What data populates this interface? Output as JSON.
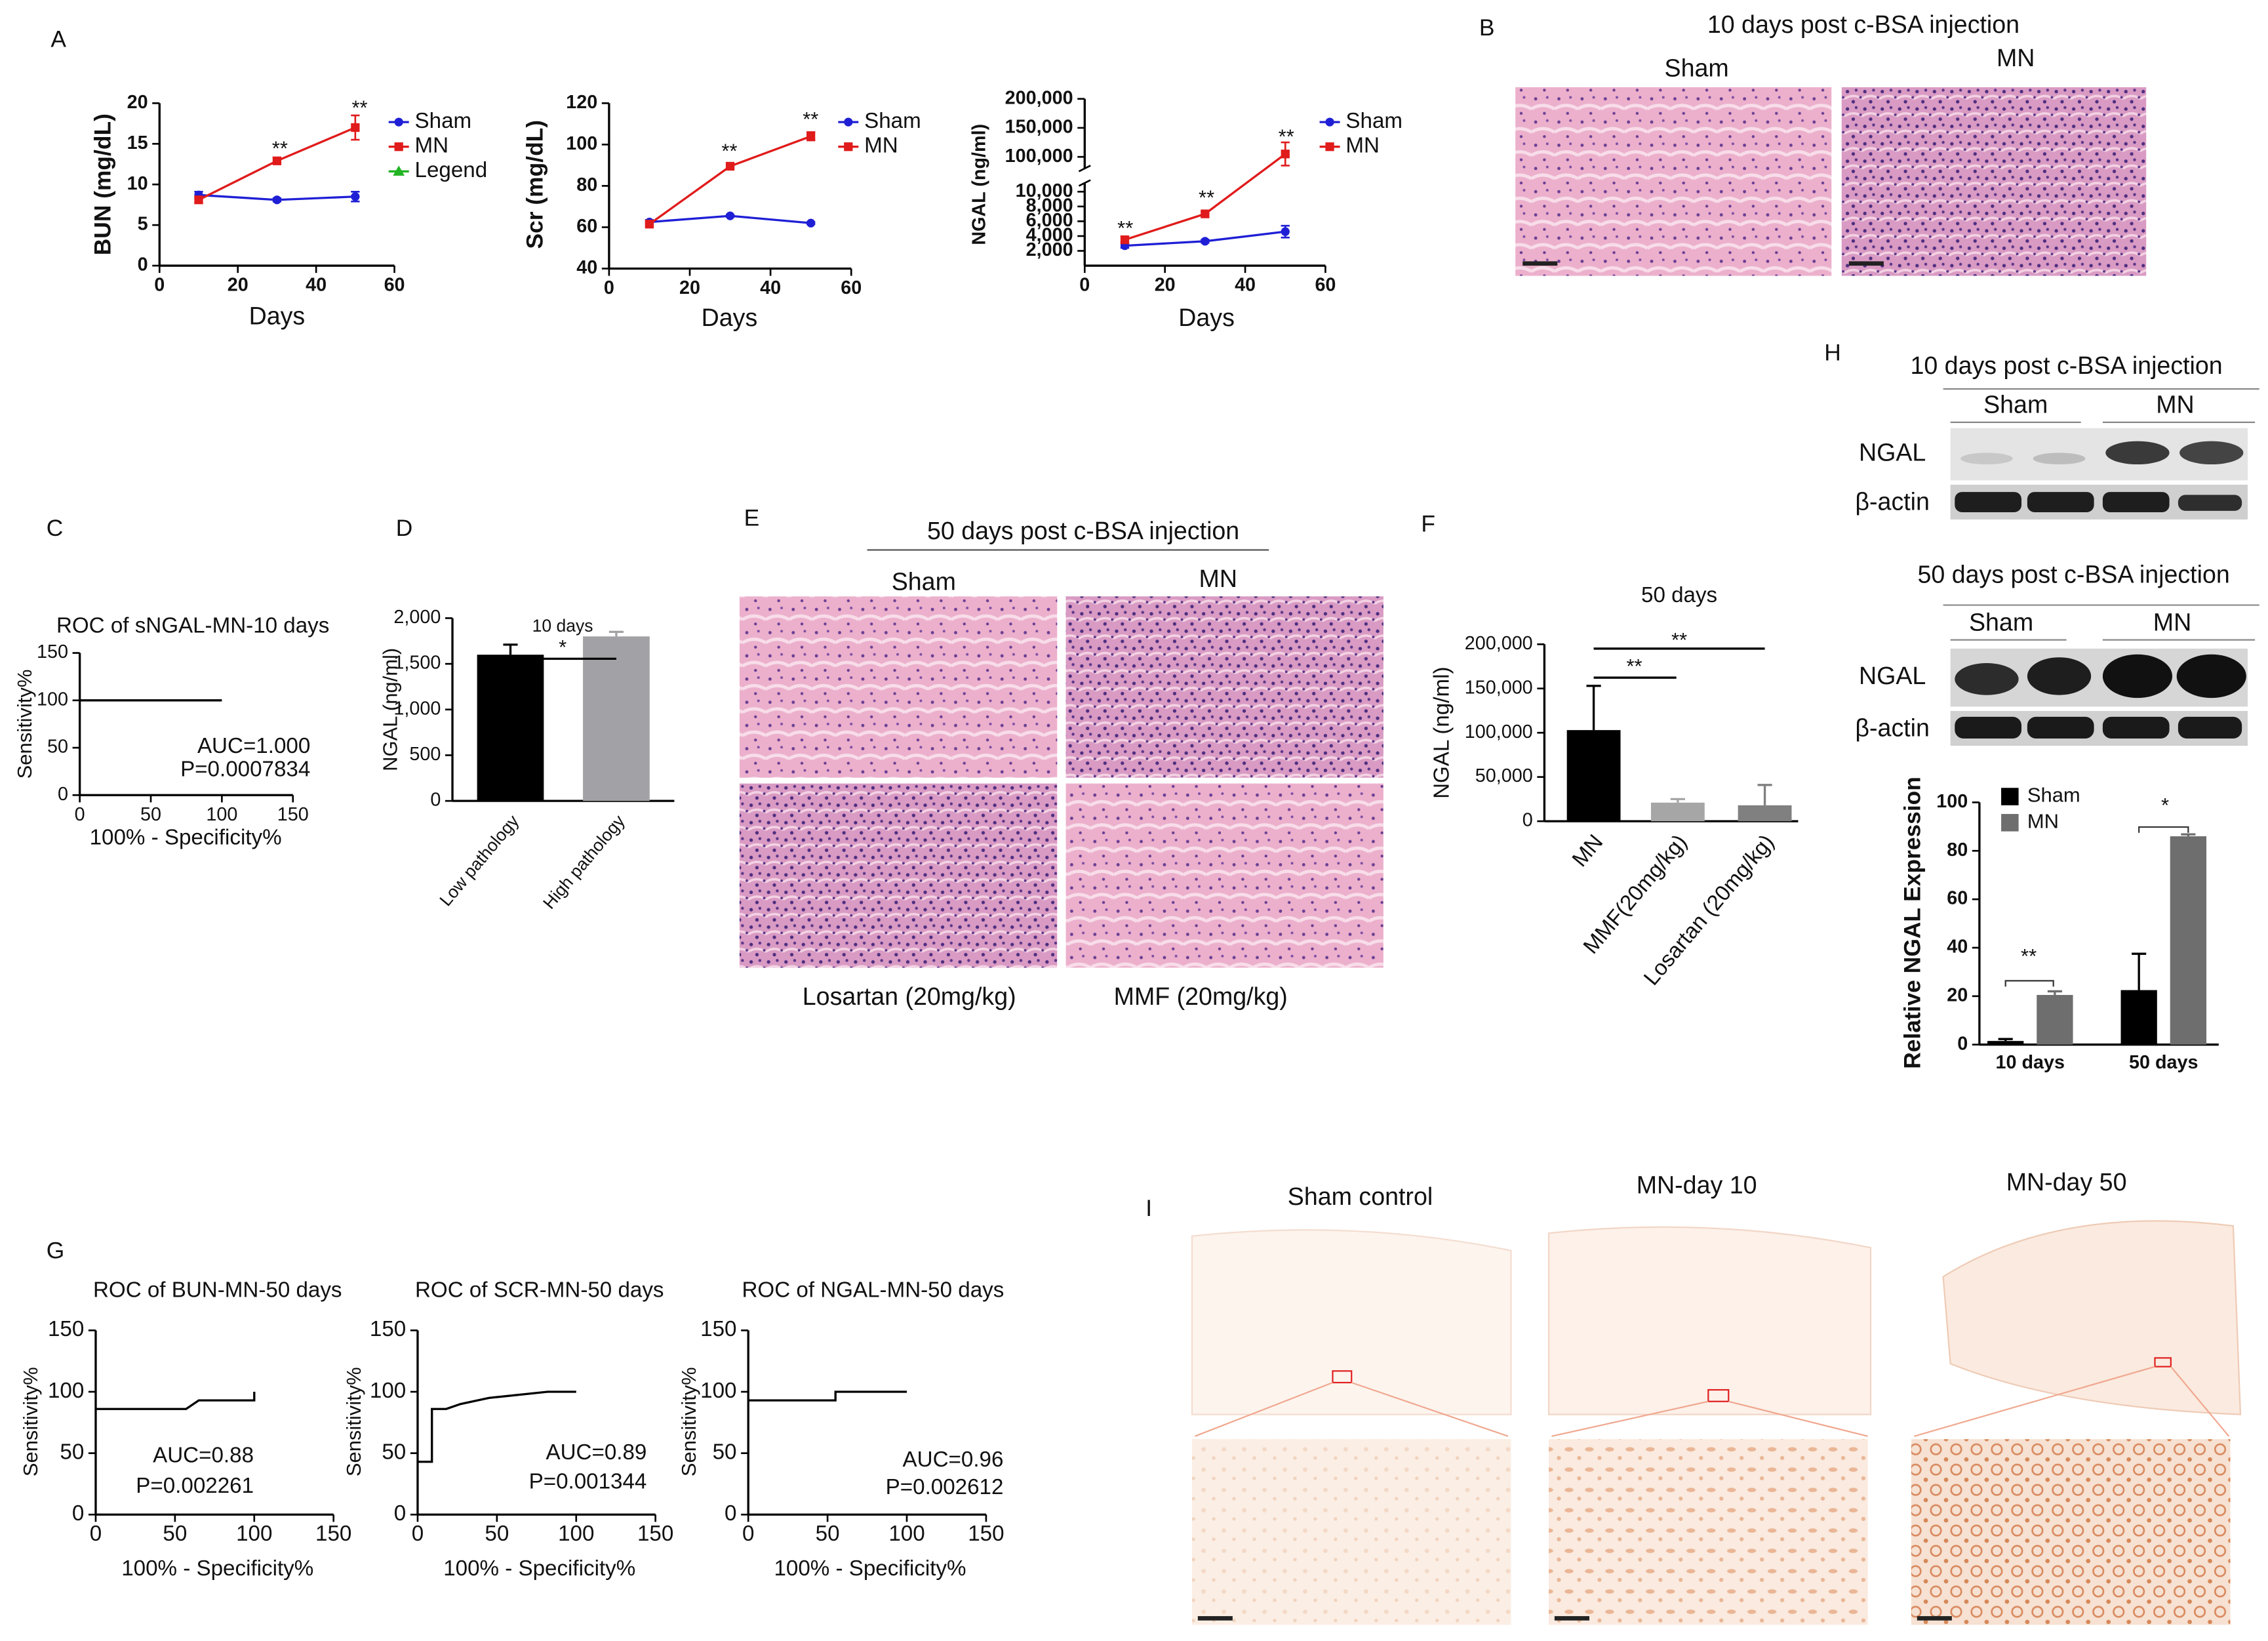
{
  "figure": {
    "panel_labels": [
      "A",
      "B",
      "C",
      "D",
      "E",
      "F",
      "G",
      "H",
      "I"
    ],
    "histology_B": {
      "title": "10 days post c-BSA injection",
      "columns": [
        "Sham",
        "MN"
      ]
    },
    "histology_E": {
      "title": "50 days post c-BSA injection",
      "top": [
        "Sham",
        "MN"
      ],
      "bottom": [
        "Losartan (20mg/kg)",
        "MMF (20mg/kg)"
      ]
    },
    "western_blot": [
      {
        "title": "10 days post c-BSA injection",
        "groups": [
          "Sham",
          "MN"
        ],
        "rows": [
          "NGAL",
          "β-actin"
        ]
      },
      {
        "title": "50 days post c-BSA injection",
        "groups": [
          "Sham",
          "MN"
        ],
        "rows": [
          "NGAL",
          "β-actin"
        ]
      }
    ],
    "ihc": {
      "columns": [
        "Sham control",
        "MN-day 10",
        "MN-day 50"
      ]
    }
  },
  "chart_data": [
    {
      "type": "line",
      "ylabel": "BUN (mg/dL)",
      "xlabel": "Days",
      "x": [
        10,
        30,
        50
      ],
      "series": [
        {
          "name": "Sham",
          "color": "#1f1fd6",
          "marker": "circle",
          "values": [
            8.7,
            8.1,
            8.5
          ],
          "errors": [
            0.4,
            0.2,
            0.6
          ]
        },
        {
          "name": "MN",
          "color": "#e01b1b",
          "marker": "square",
          "values": [
            8.1,
            12.9,
            17
          ],
          "errors": [
            0.4,
            0.4,
            1.5
          ]
        },
        {
          "name": "Legend",
          "color": "#22b422",
          "marker": "triangle",
          "values": [
            null,
            null,
            null
          ]
        }
      ],
      "xlim": [
        0,
        60
      ],
      "xticks": [
        0,
        20,
        40,
        60
      ],
      "ylim": [
        0,
        20
      ],
      "yticks": [
        0,
        5,
        10,
        15,
        20
      ],
      "annotations": [
        "**",
        "**"
      ]
    },
    {
      "type": "line",
      "ylabel": "Scr (mg/dL)",
      "xlabel": "Days",
      "x": [
        10,
        30,
        50
      ],
      "series": [
        {
          "name": "Sham",
          "color": "#1f1fd6",
          "marker": "circle",
          "values": [
            62.5,
            65.5,
            62
          ],
          "errors": [
            1,
            0.5,
            0.5
          ]
        },
        {
          "name": "MN",
          "color": "#e01b1b",
          "marker": "square",
          "values": [
            61.5,
            89.5,
            104
          ],
          "errors": [
            1,
            1,
            2
          ]
        }
      ],
      "xlim": [
        0,
        60
      ],
      "xticks": [
        0,
        20,
        40,
        60
      ],
      "ylim": [
        40,
        120
      ],
      "yticks": [
        40,
        60,
        80,
        100,
        120
      ],
      "annotations": [
        "**",
        "**"
      ]
    },
    {
      "type": "line",
      "ylabel": "NGAL (ng/ml)",
      "xlabel": "Days",
      "x": [
        10,
        30,
        50
      ],
      "series": [
        {
          "name": "Sham",
          "color": "#1f1fd6",
          "marker": "circle",
          "values": [
            2700,
            3300,
            4600
          ],
          "errors": [
            300,
            200,
            800
          ]
        },
        {
          "name": "MN",
          "color": "#e01b1b",
          "marker": "square",
          "values": [
            3500,
            7000,
            105000
          ],
          "errors": [
            400,
            300,
            20000
          ]
        }
      ],
      "xlim": [
        0,
        60
      ],
      "xticks": [
        0,
        20,
        40,
        60
      ],
      "ylim": [
        0,
        200000
      ],
      "ybreak": [
        10000,
        100000
      ],
      "yticks": [
        {
          "value": 2000,
          "label": "2,000"
        },
        {
          "value": 4000,
          "label": "4,000"
        },
        {
          "value": 6000,
          "label": "6,000"
        },
        {
          "value": 8000,
          "label": "8,000"
        },
        {
          "value": 10000,
          "label": "10,000"
        },
        {
          "value": 100000,
          "label": "100,000"
        },
        {
          "value": 150000,
          "label": "150,000"
        },
        {
          "value": 200000,
          "label": "200,000"
        }
      ],
      "annotations": [
        "**",
        "**",
        "**"
      ]
    },
    {
      "type": "line",
      "title": "ROC of sNGAL-MN-10 days",
      "xlabel": "100% - Specificity%",
      "ylabel": "Sensitivity%",
      "x": [
        0,
        100
      ],
      "values": [
        100,
        100
      ],
      "color": "#000000",
      "xlim": [
        0,
        150
      ],
      "xticks": [
        0,
        50,
        100,
        150
      ],
      "ylim": [
        0,
        150
      ],
      "yticks": [
        0,
        50,
        100,
        150
      ],
      "annotations": [
        "AUC=1.000",
        "P=0.0007834"
      ]
    },
    {
      "type": "bar",
      "title": "10 days",
      "ylabel": "NGAL (ng/ml)",
      "categories": [
        "Low pathology",
        "High pathology"
      ],
      "values": [
        1600,
        1800
      ],
      "errors": [
        110,
        50
      ],
      "colors": [
        "#000000",
        "#a2a2a6"
      ],
      "ylim": [
        0,
        2000
      ],
      "yticks": [
        0,
        500,
        {
          "value": 1000,
          "label": "1,000"
        },
        {
          "value": 1500,
          "label": "1,500"
        },
        {
          "value": 2000,
          "label": "2,000"
        }
      ],
      "annotations": [
        "*"
      ]
    },
    {
      "type": "bar",
      "title": "50 days",
      "ylabel": "NGAL (ng/ml)",
      "categories": [
        "MN",
        "MMF(20mg/kg)",
        "Losartan (20mg/kg)"
      ],
      "values": [
        103000,
        21000,
        18000
      ],
      "errors": [
        50000,
        4000,
        23000
      ],
      "colors": [
        "#000000",
        "#a6a6a6",
        "#808080"
      ],
      "ylim": [
        0,
        200000
      ],
      "yticks": [
        0,
        {
          "value": 50000,
          "label": "50,000"
        },
        {
          "value": 100000,
          "label": "100,000"
        },
        {
          "value": 150000,
          "label": "150,000"
        },
        {
          "value": 200000,
          "label": "200,000"
        }
      ],
      "annotations": [
        "**",
        "**"
      ]
    },
    {
      "type": "bar",
      "ylabel": "Relative NGAL Expression",
      "categories": [
        "10 days",
        "50 days"
      ],
      "series": [
        {
          "name": "Sham",
          "color": "#000000",
          "values": [
            1.5,
            22.5
          ],
          "errors": [
            0.8,
            15
          ]
        },
        {
          "name": "MN",
          "color": "#6e6e6e",
          "values": [
            20.5,
            86
          ],
          "errors": [
            1.5,
            0.8
          ]
        }
      ],
      "ylim": [
        0,
        100
      ],
      "yticks": [
        0,
        20,
        40,
        60,
        80,
        100
      ],
      "annotations": [
        "**",
        "*"
      ]
    },
    {
      "type": "line",
      "title": "ROC of BUN-MN-50 days",
      "xlabel": "100% - Specificity%",
      "ylabel": "Sensitivity%",
      "x": [
        0,
        57,
        65,
        100,
        100
      ],
      "values": [
        86,
        86,
        93,
        93,
        100
      ],
      "color": "#000000",
      "xlim": [
        0,
        150
      ],
      "xticks": [
        0,
        50,
        100,
        150
      ],
      "ylim": [
        0,
        150
      ],
      "yticks": [
        0,
        50,
        100,
        150
      ],
      "annotations": [
        "AUC=0.88",
        "P=0.002261"
      ]
    },
    {
      "type": "line",
      "title": "ROC of SCR-MN-50 days",
      "xlabel": "100% - Specificity%",
      "ylabel": "Sensitivity%",
      "x": [
        0,
        9,
        9,
        18,
        27,
        45,
        82,
        100
      ],
      "values": [
        43,
        43,
        86,
        86,
        90,
        95,
        100,
        100
      ],
      "color": "#000000",
      "xlim": [
        0,
        150
      ],
      "xticks": [
        0,
        50,
        100,
        150
      ],
      "ylim": [
        0,
        150
      ],
      "yticks": [
        0,
        50,
        100,
        150
      ],
      "annotations": [
        "AUC=0.89",
        "P=0.001344"
      ]
    },
    {
      "type": "line",
      "title": "ROC of NGAL-MN-50 days",
      "xlabel": "100% - Specificity%",
      "ylabel": "Sensitivity%",
      "x": [
        0,
        55,
        55,
        100
      ],
      "values": [
        93,
        93,
        100,
        100
      ],
      "color": "#000000",
      "xlim": [
        0,
        150
      ],
      "xticks": [
        0,
        50,
        100,
        150
      ],
      "ylim": [
        0,
        150
      ],
      "yticks": [
        0,
        50,
        100,
        150
      ],
      "annotations": [
        "AUC=0.96",
        "P=0.002612"
      ]
    }
  ]
}
